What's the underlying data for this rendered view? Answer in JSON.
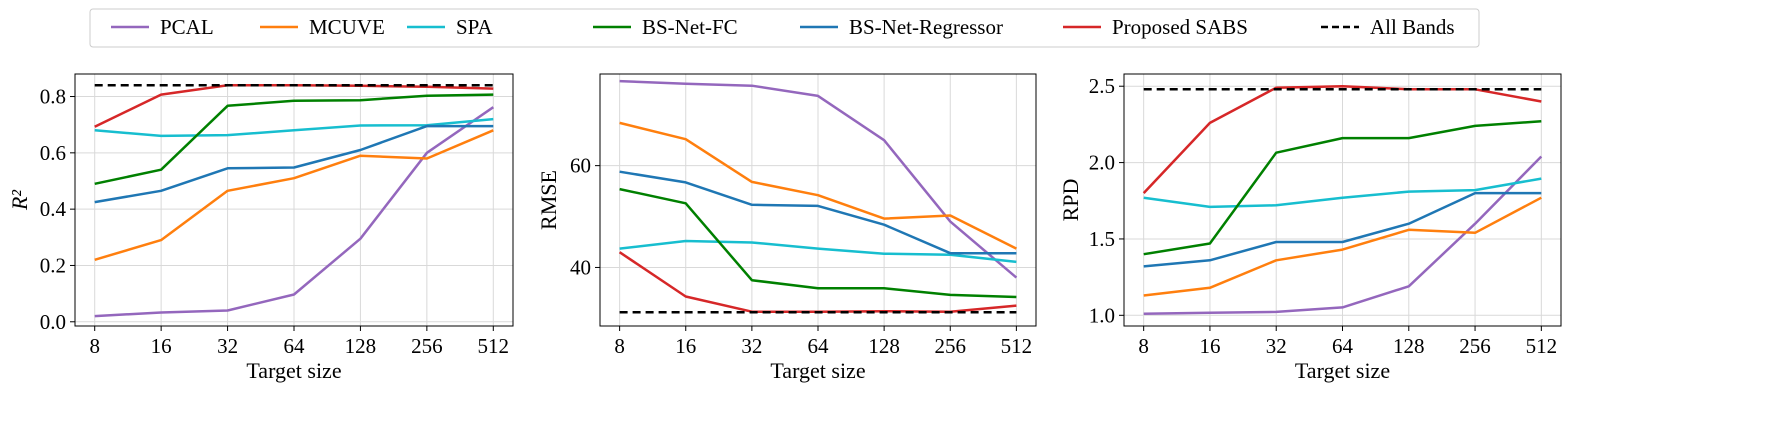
{
  "legend": [
    {
      "label": "PCAL",
      "color": "#9467bd",
      "dash": false
    },
    {
      "label": "MCUVE",
      "color": "#ff7f0e",
      "dash": false
    },
    {
      "label": "SPA",
      "color": "#17becf",
      "dash": false
    },
    {
      "label": "BS-Net-FC",
      "color": "#008000",
      "dash": false
    },
    {
      "label": "BS-Net-Regressor",
      "color": "#1f77b4",
      "dash": false
    },
    {
      "label": "Proposed SABS",
      "color": "#d62728",
      "dash": false
    },
    {
      "label": "All Bands",
      "color": "#000000",
      "dash": true
    }
  ],
  "chart_data": [
    {
      "type": "line",
      "xlabel": "Target size",
      "ylabel": "R²",
      "categories": [
        "8",
        "16",
        "32",
        "64",
        "128",
        "256",
        "512"
      ],
      "ylim": [
        -0.015,
        0.88
      ],
      "yticks": [
        0.0,
        0.2,
        0.4,
        0.6,
        0.8
      ],
      "ytick_labels": [
        "0.0",
        "0.2",
        "0.4",
        "0.6",
        "0.8"
      ],
      "grid": true,
      "series": [
        {
          "name": "PCAL",
          "values": [
            0.02,
            0.033,
            0.04,
            0.097,
            0.295,
            0.6,
            0.762
          ]
        },
        {
          "name": "MCUVE",
          "values": [
            0.22,
            0.29,
            0.465,
            0.51,
            0.59,
            0.58,
            0.68
          ]
        },
        {
          "name": "SPA",
          "values": [
            0.68,
            0.66,
            0.663,
            0.68,
            0.697,
            0.698,
            0.72
          ]
        },
        {
          "name": "BS-Net-FC",
          "values": [
            0.49,
            0.54,
            0.767,
            0.785,
            0.787,
            0.803,
            0.807
          ]
        },
        {
          "name": "BS-Net-Regressor",
          "values": [
            0.425,
            0.465,
            0.545,
            0.548,
            0.61,
            0.695,
            0.695
          ]
        },
        {
          "name": "Proposed SABS",
          "values": [
            0.693,
            0.807,
            0.84,
            0.84,
            0.838,
            0.835,
            0.828
          ]
        },
        {
          "name": "All Bands",
          "values": [
            0.84,
            0.84,
            0.84,
            0.84,
            0.84,
            0.84,
            0.84
          ]
        }
      ]
    },
    {
      "type": "line",
      "xlabel": "Target size",
      "ylabel": "RMSE",
      "categories": [
        "8",
        "16",
        "32",
        "64",
        "128",
        "256",
        "512"
      ],
      "ylim": [
        28.5,
        78
      ],
      "yticks": [
        40,
        60
      ],
      "ytick_labels": [
        "40",
        "60"
      ],
      "grid": true,
      "series": [
        {
          "name": "PCAL",
          "values": [
            76.6,
            76.1,
            75.7,
            73.7,
            65.0,
            49.0,
            38.0
          ]
        },
        {
          "name": "MCUVE",
          "values": [
            68.4,
            65.2,
            56.8,
            54.2,
            49.6,
            50.2,
            43.7
          ]
        },
        {
          "name": "SPA",
          "values": [
            43.7,
            45.2,
            44.9,
            43.7,
            42.7,
            42.5,
            41.1
          ]
        },
        {
          "name": "BS-Net-FC",
          "values": [
            55.4,
            52.6,
            37.5,
            35.9,
            35.9,
            34.6,
            34.2
          ]
        },
        {
          "name": "BS-Net-Regressor",
          "values": [
            58.8,
            56.7,
            52.3,
            52.1,
            48.4,
            42.8,
            42.8
          ]
        },
        {
          "name": "Proposed SABS",
          "values": [
            43.0,
            34.3,
            31.3,
            31.3,
            31.4,
            31.3,
            32.5
          ]
        },
        {
          "name": "All Bands",
          "values": [
            31.2,
            31.2,
            31.2,
            31.2,
            31.2,
            31.2,
            31.2
          ]
        }
      ]
    },
    {
      "type": "line",
      "xlabel": "Target size",
      "ylabel": "RPD",
      "categories": [
        "8",
        "16",
        "32",
        "64",
        "128",
        "256",
        "512"
      ],
      "ylim": [
        0.93,
        2.58
      ],
      "yticks": [
        1.0,
        1.5,
        2.0,
        2.5
      ],
      "ytick_labels": [
        "1.0",
        "1.5",
        "2.0",
        "2.5"
      ],
      "grid": true,
      "series": [
        {
          "name": "PCAL",
          "values": [
            1.01,
            1.017,
            1.022,
            1.052,
            1.19,
            1.6,
            2.04
          ]
        },
        {
          "name": "MCUVE",
          "values": [
            1.13,
            1.18,
            1.36,
            1.43,
            1.56,
            1.54,
            1.77
          ]
        },
        {
          "name": "SPA",
          "values": [
            1.77,
            1.71,
            1.72,
            1.77,
            1.81,
            1.82,
            1.895
          ]
        },
        {
          "name": "BS-Net-FC",
          "values": [
            1.4,
            1.47,
            2.065,
            2.16,
            2.16,
            2.24,
            2.27
          ]
        },
        {
          "name": "BS-Net-Regressor",
          "values": [
            1.32,
            1.36,
            1.48,
            1.48,
            1.6,
            1.8,
            1.8
          ]
        },
        {
          "name": "Proposed SABS",
          "values": [
            1.8,
            2.26,
            2.49,
            2.5,
            2.48,
            2.48,
            2.4
          ]
        },
        {
          "name": "All Bands",
          "values": [
            2.48,
            2.48,
            2.48,
            2.48,
            2.48,
            2.48,
            2.48
          ]
        }
      ]
    }
  ]
}
